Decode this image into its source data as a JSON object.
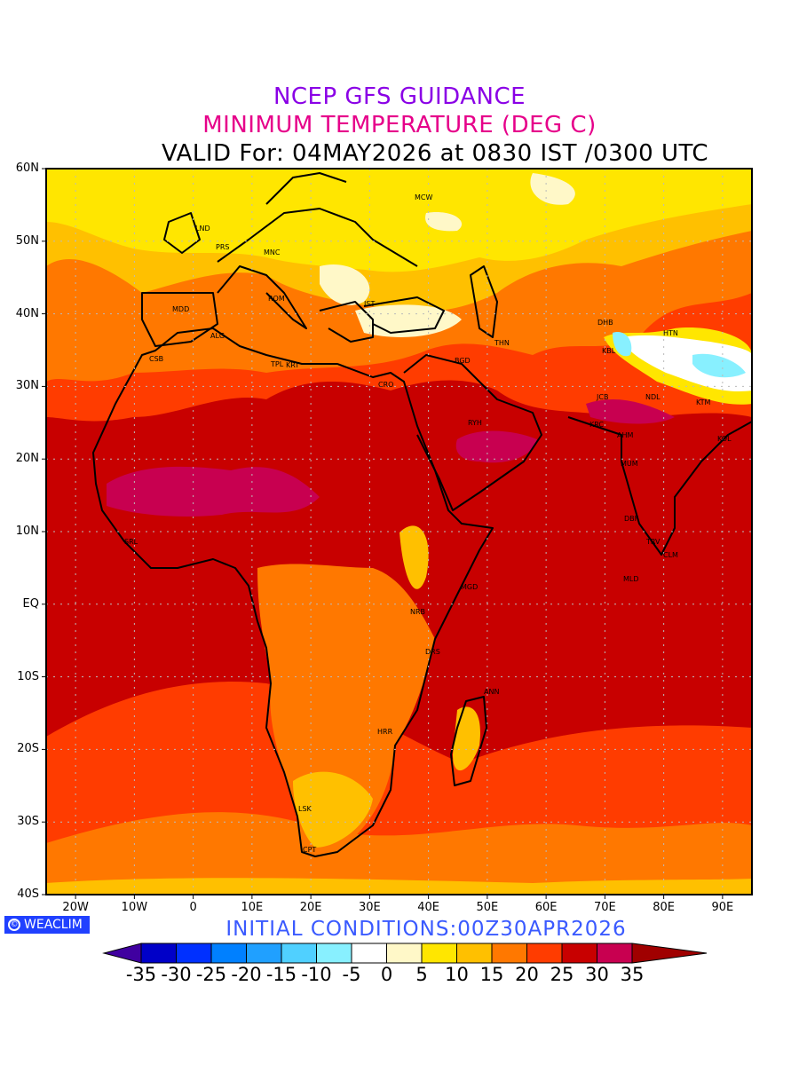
{
  "title": {
    "line1": "NCEP GFS GUIDANCE",
    "line2": "MINIMUM TEMPERATURE (DEG C)",
    "line3": "VALID For: 04MAY2026 at 0830 IST /0300 UTC"
  },
  "axes": {
    "lat_labels": [
      "60N",
      "50N",
      "40N",
      "30N",
      "20N",
      "10N",
      "EQ",
      "10S",
      "20S",
      "30S",
      "40S"
    ],
    "lon_labels": [
      "20W",
      "10W",
      "0",
      "10E",
      "20E",
      "30E",
      "40E",
      "50E",
      "60E",
      "70E",
      "80E",
      "90E"
    ],
    "lon_range": [
      -25,
      95
    ],
    "lat_range": [
      -40,
      60
    ]
  },
  "cities": [
    "MCW",
    "LND",
    "PRS",
    "MNC",
    "ROM",
    "MDD",
    "IST",
    "ALG",
    "CSB",
    "TPL",
    "KRT",
    "CRO",
    "BGD",
    "THN",
    "DHB",
    "HTN",
    "KBL",
    "JCB",
    "NDL",
    "KTM",
    "KRC",
    "AHM",
    "KOL",
    "MUM",
    "RYH",
    "DBF",
    "TRV",
    "CLM",
    "MLD",
    "SRL",
    "MGD",
    "NRB",
    "DRS",
    "ANN",
    "HRR",
    "LSK",
    "CPT"
  ],
  "badge": {
    "symbol": "©",
    "text": "WEACLIM"
  },
  "initial_conditions": "INITIAL  CONDITIONS:00Z30APR2026",
  "colorbar": {
    "under_color": "#4000a0",
    "over_color": "#a00000",
    "colors": [
      "#0000c8",
      "#0030ff",
      "#0080ff",
      "#20a0ff",
      "#50d0ff",
      "#88f0ff",
      "#ffffff",
      "#fff8c8",
      "#ffe600",
      "#ffc000",
      "#ff7800",
      "#ff3c00",
      "#c80000",
      "#c80050"
    ],
    "labels": [
      "-35",
      "-30",
      "-25",
      "-20",
      "-15",
      "-10",
      "-5",
      "0",
      "5",
      "10",
      "15",
      "20",
      "25",
      "30",
      "35"
    ]
  }
}
